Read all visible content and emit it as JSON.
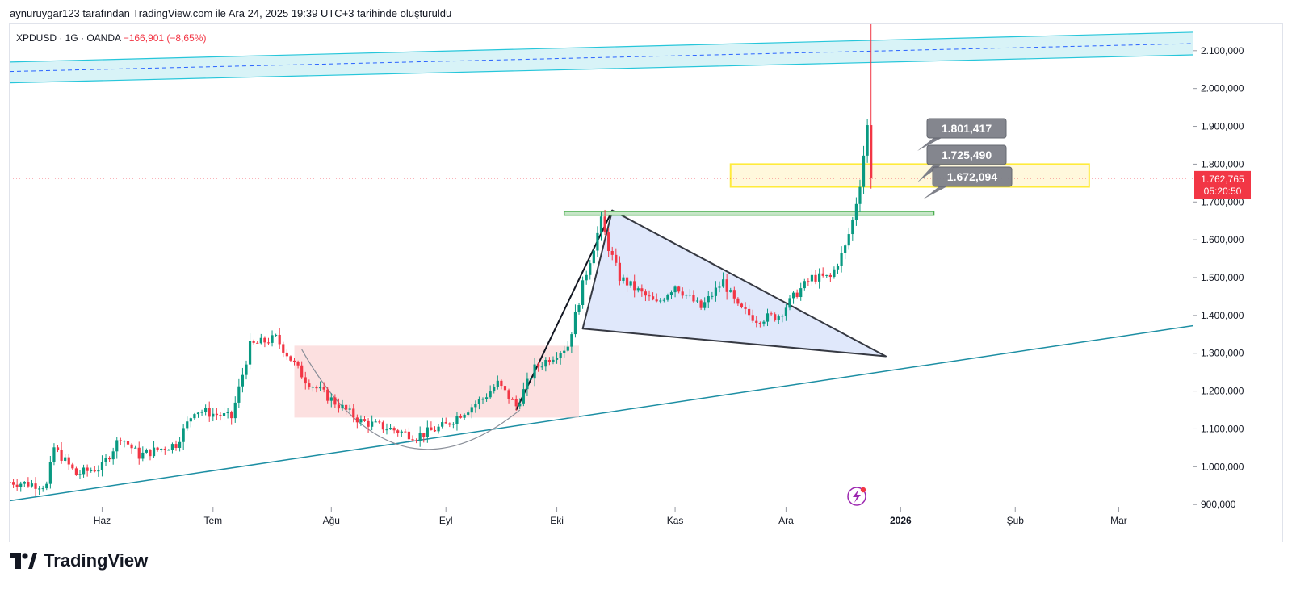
{
  "caption": "aynuruygar123 tarafından TradingView.com ile Ara 24, 2025 19:39 UTC+3 tarihinde oluşturuldu",
  "symbol": {
    "name": "XPDUSD · 1G · OANDA",
    "change": "−166,901 (−8,65%)"
  },
  "brand": "TradingView",
  "icons": [
    "tradingview-logo-icon",
    "lightning-icon"
  ],
  "colors": {
    "up": "#089981",
    "down": "#f23645",
    "channel": "#26c6da",
    "wedge_fill": "#dbe4fb",
    "cup_fill": "#fbd6d6",
    "zone_outline": "#ffeb3b",
    "support_line": "#4caf50",
    "price_label": "#f23645"
  },
  "price_label": {
    "value": "1.762,765",
    "countdown": "05:20:50"
  },
  "callouts": [
    "1.801,417",
    "1.725,490",
    "1.672,094"
  ],
  "chart_data": {
    "type": "candlestick",
    "title": "XPDUSD · 1G · OANDA",
    "xlabel": "",
    "ylabel": "",
    "ylim": [
      830000,
      2170000
    ],
    "y_ticks": [
      "2.100,000",
      "2.000,000",
      "1.900,000",
      "1.800,000",
      "1.700,000",
      "1.600,000",
      "1.500,000",
      "1.400,000",
      "1.300,000",
      "1.200,000",
      "1.100,000",
      "1.000,000",
      "900,000"
    ],
    "y_tick_values": [
      2100000,
      2000000,
      1900000,
      1800000,
      1700000,
      1600000,
      1500000,
      1400000,
      1300000,
      1200000,
      1100000,
      1000000,
      900000
    ],
    "x_ticks": [
      "Haz",
      "Tem",
      "Ağu",
      "Eyl",
      "Eki",
      "Kas",
      "Ara",
      "2026",
      "Şub",
      "Mar"
    ],
    "x_tick_days": [
      25,
      55,
      87,
      118,
      148,
      180,
      210,
      241,
      272,
      300
    ],
    "x_day_range": [
      0,
      320
    ],
    "last_price": 1762765,
    "candle_days_range": [
      0,
      233
    ],
    "close_path": [
      [
        0,
        960000
      ],
      [
        10,
        950000
      ],
      [
        12,
        1050000
      ],
      [
        18,
        980000
      ],
      [
        25,
        1000000
      ],
      [
        30,
        1080000
      ],
      [
        35,
        1030000
      ],
      [
        45,
        1060000
      ],
      [
        50,
        1150000
      ],
      [
        60,
        1130000
      ],
      [
        65,
        1320000
      ],
      [
        72,
        1340000
      ],
      [
        80,
        1230000
      ],
      [
        88,
        1170000
      ],
      [
        95,
        1120000
      ],
      [
        103,
        1100000
      ],
      [
        110,
        1080000
      ],
      [
        118,
        1110000
      ],
      [
        122,
        1140000
      ],
      [
        128,
        1180000
      ],
      [
        132,
        1220000
      ],
      [
        137,
        1160000
      ],
      [
        142,
        1260000
      ],
      [
        148,
        1300000
      ],
      [
        151,
        1320000
      ],
      [
        155,
        1480000
      ],
      [
        160,
        1650000
      ],
      [
        162,
        1580000
      ],
      [
        165,
        1500000
      ],
      [
        175,
        1430000
      ],
      [
        180,
        1480000
      ],
      [
        187,
        1420000
      ],
      [
        193,
        1490000
      ],
      [
        197,
        1420000
      ],
      [
        202,
        1390000
      ],
      [
        208,
        1400000
      ],
      [
        213,
        1460000
      ],
      [
        217,
        1500000
      ],
      [
        222,
        1500000
      ],
      [
        226,
        1580000
      ],
      [
        228,
        1650000
      ],
      [
        230,
        1750000
      ],
      [
        232,
        1900000
      ],
      [
        233,
        1770000
      ]
    ],
    "annotations": {
      "channel_upper": [
        [
          0,
          2070000
        ],
        [
          325,
          2150000
        ]
      ],
      "channel_lower": [
        [
          0,
          2015000
        ],
        [
          325,
          2090000
        ]
      ],
      "channel_mid": [
        [
          0,
          2045000
        ],
        [
          325,
          2120000
        ]
      ],
      "trend_support": [
        [
          0,
          910000
        ],
        [
          325,
          1380000
        ]
      ],
      "wedge": [
        [
          155,
          1365000
        ],
        [
          163,
          1678000
        ],
        [
          237,
          1292000
        ]
      ],
      "cup_range": [
        [
          77,
          1320000
        ],
        [
          154,
          1130000
        ]
      ],
      "support_zone": [
        [
          150,
          1665000
        ],
        [
          250,
          1675000
        ]
      ],
      "resistance_zone": [
        [
          195,
          1740000
        ],
        [
          292,
          1800000
        ]
      ]
    }
  }
}
